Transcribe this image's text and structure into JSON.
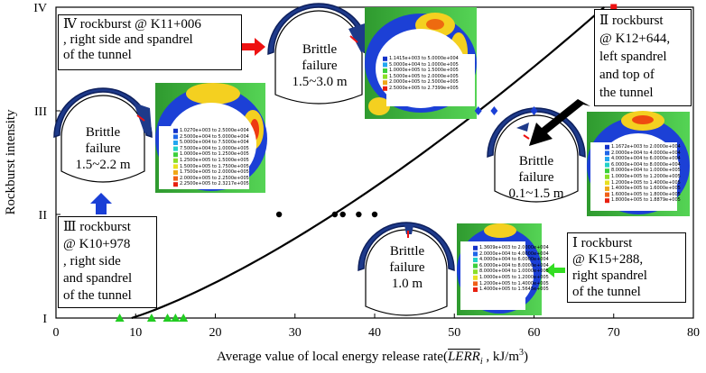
{
  "chart_data": {
    "type": "scatter",
    "title": "",
    "xlabel_prefix": "Average value of local energy release rate(",
    "xlabel_symbol": "LERR",
    "xlabel_subscript": "i",
    "xlabel_suffix": " , kJ/m",
    "xlabel_superscript": "3",
    "xlabel_close": ")",
    "ylabel": "Rockburst intensity",
    "xlim": [
      0,
      80
    ],
    "x_ticks": [
      "0",
      "10",
      "20",
      "30",
      "40",
      "50",
      "60",
      "70",
      "80"
    ],
    "y_categories": [
      "I",
      "II",
      "III",
      "IV"
    ],
    "series": [
      {
        "name": "Intensity I",
        "marker": "triangle",
        "color": "#22cc22",
        "level": 1,
        "x": [
          8,
          12,
          14,
          15,
          16
        ]
      },
      {
        "name": "Intensity II",
        "marker": "circle",
        "color": "#000000",
        "level": 2,
        "x": [
          28,
          35,
          36,
          38,
          40
        ]
      },
      {
        "name": "Intensity III",
        "marker": "diamond",
        "color": "#1a3fd6",
        "level": 3,
        "x": [
          53,
          55,
          60
        ]
      },
      {
        "name": "Intensity IV",
        "marker": "square",
        "color": "#ee1111",
        "level": 4,
        "x": [
          70
        ]
      }
    ],
    "curve": {
      "name": "trend",
      "x0": 9.5,
      "x1": 68.8
    }
  },
  "annotations": {
    "iv": {
      "lines": [
        "Ⅳ rockburst @ K11+006",
        ", right side and spandrel",
        "of the tunnel"
      ]
    },
    "ii": {
      "lines": [
        "Ⅱ rockburst",
        "@ K12+644,",
        "left spandrel",
        "and top of",
        "the tunnel"
      ]
    },
    "iii": {
      "lines": [
        "Ⅲ rockburst",
        "@ K10+978",
        ", right side",
        "and spandrel",
        "of the tunnel"
      ]
    },
    "i": {
      "lines": [
        "Ⅰ rockburst",
        "@ K15+288,",
        "right spandrel",
        "of the tunnel"
      ]
    }
  },
  "failures": {
    "iv": {
      "label": "Brittle failure",
      "range": "1.5~3.0 m"
    },
    "iii": {
      "label": "Brittle failure",
      "range": "1.5~2.2 m"
    },
    "ii": {
      "label": "Brittle failure",
      "range": "0.1~1.5 m"
    },
    "i": {
      "label": "Brittle failure",
      "range": "1.0 m"
    }
  },
  "legends": {
    "iv": [
      "1.1415e+003 to 5.0000e+004",
      "5.0000e+004 to 1.0000e+005",
      "1.0000e+005 to 1.5000e+005",
      "1.5000e+005 to 2.0000e+005",
      "2.0000e+005 to 2.5000e+005",
      "2.5000e+005 to 2.7399e+005"
    ],
    "iii": [
      "1.0270e+003 to 2.5000e+004",
      "2.5000e+004 to 5.0000e+004",
      "5.0000e+004 to 7.5000e+004",
      "7.5000e+004 to 1.0000e+005",
      "1.0000e+005 to 1.2500e+005",
      "1.2500e+005 to 1.5000e+005",
      "1.5000e+005 to 1.7500e+005",
      "1.7500e+005 to 2.0000e+005",
      "2.0000e+005 to 2.2500e+005",
      "2.2500e+005 to 2.3217e+005"
    ],
    "ii": [
      "1.1672e+003 to 2.0000e+004",
      "2.0000e+004 to 4.0000e+004",
      "4.0000e+004 to 6.0000e+004",
      "6.0000e+004 to 8.0000e+004",
      "8.0000e+004 to 1.0000e+005",
      "1.0000e+005 to 1.2000e+005",
      "1.2000e+005 to 1.4000e+005",
      "1.4000e+005 to 1.6000e+005",
      "1.6000e+005 to 1.8000e+005",
      "1.8000e+005 to 1.8879e+005"
    ],
    "i": [
      "1.3609e+003 to 2.0000e+004",
      "2.0000e+004 to 4.0000e+004",
      "4.0000e+004 to 6.0000e+004",
      "6.0000e+004 to 8.0000e+004",
      "8.0000e+004 to 1.0000e+005",
      "1.0000e+005 to 1.2000e+005",
      "1.2000e+005 to 1.4000e+005",
      "1.4000e+005 to 1.5645e+005"
    ]
  },
  "colors": {
    "green": "#22cc22",
    "blue": "#1a3fd6",
    "red": "#ee1111",
    "black": "#000000"
  }
}
